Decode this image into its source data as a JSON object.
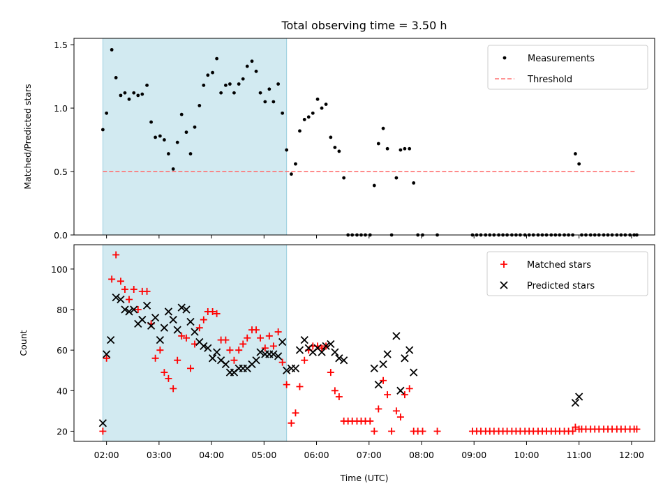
{
  "chart_data": [
    {
      "type": "scatter",
      "title": "Total observing time = 3.50 h",
      "xlabel": "",
      "ylabel": "Matched/Predicted stars",
      "ylim": [
        0,
        1.55
      ],
      "yticks": [
        0.0,
        0.5,
        1.0,
        1.5
      ],
      "ytick_labels": [
        "0.0",
        "0.5",
        "1.0",
        "1.5"
      ],
      "x_unit": "hours UTC",
      "xlim": [
        1.38,
        12.44
      ],
      "highlight_span": [
        1.93,
        5.43
      ],
      "highlight_color": "#add8e6",
      "legend_position": "upper right",
      "series": [
        {
          "name": "Measurements",
          "kind": "points",
          "color": "#000000",
          "x": [
            1.93,
            2.0,
            2.1,
            2.18,
            2.27,
            2.35,
            2.43,
            2.52,
            2.6,
            2.68,
            2.77,
            2.85,
            2.93,
            3.02,
            3.1,
            3.18,
            3.27,
            3.35,
            3.43,
            3.52,
            3.6,
            3.68,
            3.77,
            3.85,
            3.93,
            4.02,
            4.1,
            4.18,
            4.27,
            4.35,
            4.43,
            4.52,
            4.6,
            4.68,
            4.77,
            4.85,
            4.93,
            5.02,
            5.1,
            5.18,
            5.27,
            5.35,
            5.43,
            5.52,
            5.6,
            5.68,
            5.77,
            5.85,
            5.93,
            6.02,
            6.1,
            6.18,
            6.27,
            6.35,
            6.43,
            6.52,
            6.6,
            6.68,
            6.77,
            6.85,
            6.93,
            7.02,
            7.1,
            7.18,
            7.27,
            7.35,
            7.43,
            7.52,
            7.6,
            7.68,
            7.77,
            7.85,
            7.93,
            8.02,
            8.3,
            8.97,
            9.05,
            9.13,
            9.22,
            9.3,
            9.38,
            9.47,
            9.55,
            9.63,
            9.72,
            9.8,
            9.88,
            9.97,
            10.05,
            10.13,
            10.22,
            10.3,
            10.38,
            10.47,
            10.55,
            10.63,
            10.72,
            10.8,
            10.88,
            10.93,
            11.0,
            11.05,
            11.13,
            11.22,
            11.3,
            11.38,
            11.47,
            11.55,
            11.63,
            11.72,
            11.8,
            11.88,
            11.97,
            12.05,
            12.1
          ],
          "y": [
            0.83,
            0.96,
            1.46,
            1.24,
            1.1,
            1.12,
            1.07,
            1.12,
            1.1,
            1.11,
            1.18,
            0.89,
            0.77,
            0.78,
            0.75,
            0.64,
            0.52,
            0.73,
            0.95,
            0.81,
            0.64,
            0.85,
            1.02,
            1.18,
            1.26,
            1.28,
            1.39,
            1.12,
            1.18,
            1.19,
            1.12,
            1.19,
            1.23,
            1.33,
            1.37,
            1.29,
            1.12,
            1.05,
            1.15,
            1.05,
            1.19,
            0.96,
            0.67,
            0.48,
            0.56,
            0.82,
            0.91,
            0.93,
            0.96,
            1.07,
            1.0,
            1.03,
            0.77,
            0.69,
            0.66,
            0.45,
            0.0,
            0.0,
            0.0,
            0.0,
            0.0,
            0.0,
            0.39,
            0.72,
            0.84,
            0.68,
            0.0,
            0.45,
            0.67,
            0.68,
            0.68,
            0.41,
            0.0,
            0.0,
            0.0,
            0.0,
            0.0,
            0.0,
            0.0,
            0.0,
            0.0,
            0.0,
            0.0,
            0.0,
            0.0,
            0.0,
            0.0,
            0.0,
            0.0,
            0.0,
            0.0,
            0.0,
            0.0,
            0.0,
            0.0,
            0.0,
            0.0,
            0.0,
            0.0,
            0.64,
            0.56,
            0.0,
            0.0,
            0.0,
            0.0,
            0.0,
            0.0,
            0.0,
            0.0,
            0.0,
            0.0,
            0.0,
            0.0,
            0.0,
            0.0
          ]
        },
        {
          "name": "Threshold",
          "kind": "dashed-line",
          "color": "#ff7070",
          "x": [
            1.93,
            12.1
          ],
          "y": [
            0.5,
            0.5
          ]
        }
      ]
    },
    {
      "type": "scatter",
      "title": "",
      "xlabel": "Time (UTC)",
      "ylabel": "Count",
      "ylim": [
        15,
        112
      ],
      "yticks": [
        20,
        40,
        60,
        80,
        100
      ],
      "ytick_labels": [
        "20",
        "40",
        "60",
        "80",
        "100"
      ],
      "x_unit": "hours UTC",
      "xlim": [
        1.38,
        12.44
      ],
      "xticks": [
        2,
        3,
        4,
        5,
        6,
        7,
        8,
        9,
        10,
        11,
        12
      ],
      "xtick_labels": [
        "02:00",
        "03:00",
        "04:00",
        "05:00",
        "06:00",
        "07:00",
        "08:00",
        "09:00",
        "10:00",
        "11:00",
        "12:00"
      ],
      "highlight_span": [
        1.93,
        5.43
      ],
      "highlight_color": "#add8e6",
      "legend_position": "upper right",
      "series": [
        {
          "name": "Matched stars",
          "marker": "plus",
          "color": "#ff0000",
          "x": [
            1.93,
            2.0,
            2.1,
            2.18,
            2.27,
            2.35,
            2.43,
            2.52,
            2.6,
            2.68,
            2.77,
            2.85,
            2.93,
            3.02,
            3.1,
            3.18,
            3.27,
            3.35,
            3.43,
            3.52,
            3.6,
            3.68,
            3.77,
            3.85,
            3.93,
            4.02,
            4.1,
            4.18,
            4.27,
            4.35,
            4.43,
            4.52,
            4.6,
            4.68,
            4.77,
            4.85,
            4.93,
            5.02,
            5.1,
            5.18,
            5.27,
            5.35,
            5.43,
            5.52,
            5.6,
            5.68,
            5.77,
            5.85,
            5.93,
            6.02,
            6.1,
            6.18,
            6.27,
            6.35,
            6.43,
            6.52,
            6.6,
            6.68,
            6.77,
            6.85,
            6.93,
            7.02,
            7.1,
            7.18,
            7.27,
            7.35,
            7.43,
            7.52,
            7.6,
            7.68,
            7.77,
            7.85,
            7.93,
            8.02,
            8.3,
            8.97,
            9.05,
            9.13,
            9.22,
            9.3,
            9.38,
            9.47,
            9.55,
            9.63,
            9.72,
            9.8,
            9.88,
            9.97,
            10.05,
            10.13,
            10.22,
            10.3,
            10.38,
            10.47,
            10.55,
            10.63,
            10.72,
            10.8,
            10.88,
            10.93,
            11.0,
            11.05,
            11.13,
            11.22,
            11.3,
            11.38,
            11.47,
            11.55,
            11.63,
            11.72,
            11.8,
            11.88,
            11.97,
            12.05,
            12.1
          ],
          "y": [
            20,
            56,
            95,
            107,
            94,
            90,
            85,
            90,
            80,
            89,
            89,
            73,
            56,
            60,
            49,
            46,
            41,
            55,
            67,
            66,
            51,
            63,
            71,
            75,
            79,
            79,
            78,
            65,
            65,
            60,
            55,
            60,
            63,
            66,
            70,
            70,
            66,
            61,
            67,
            62,
            69,
            54,
            43,
            24,
            29,
            42,
            55,
            60,
            62,
            62,
            61,
            62,
            49,
            40,
            37,
            25,
            25,
            25,
            25,
            25,
            25,
            25,
            20,
            31,
            45,
            38,
            20,
            30,
            27,
            38,
            41,
            20,
            20,
            20,
            20,
            20,
            20,
            20,
            20,
            20,
            20,
            20,
            20,
            20,
            20,
            20,
            20,
            20,
            20,
            20,
            20,
            20,
            20,
            20,
            20,
            20,
            20,
            20,
            20,
            22,
            21,
            21,
            21,
            21,
            21,
            21,
            21,
            21,
            21,
            21,
            21,
            21,
            21,
            21,
            21
          ]
        },
        {
          "name": "Predicted stars",
          "marker": "x",
          "color": "#000000",
          "x": [
            1.93,
            2.0,
            2.08,
            2.18,
            2.27,
            2.35,
            2.43,
            2.52,
            2.6,
            2.68,
            2.77,
            2.85,
            2.93,
            3.02,
            3.1,
            3.18,
            3.27,
            3.35,
            3.43,
            3.52,
            3.6,
            3.68,
            3.77,
            3.85,
            3.93,
            4.02,
            4.1,
            4.18,
            4.27,
            4.35,
            4.43,
            4.52,
            4.6,
            4.68,
            4.77,
            4.85,
            4.93,
            5.02,
            5.1,
            5.18,
            5.27,
            5.35,
            5.43,
            5.52,
            5.6,
            5.68,
            5.77,
            5.85,
            5.93,
            6.02,
            6.1,
            6.18,
            6.27,
            6.35,
            6.43,
            6.52,
            7.1,
            7.18,
            7.27,
            7.35,
            7.52,
            7.6,
            7.68,
            7.77,
            7.85,
            10.93,
            11.0
          ],
          "y": [
            24,
            58,
            65,
            86,
            85,
            80,
            79,
            80,
            73,
            75,
            82,
            72,
            76,
            65,
            71,
            79,
            75,
            70,
            81,
            80,
            74,
            69,
            64,
            62,
            61,
            56,
            59,
            55,
            53,
            49,
            49,
            51,
            51,
            51,
            53,
            55,
            59,
            58,
            58,
            58,
            57,
            64,
            50,
            51,
            51,
            60,
            65,
            61,
            59,
            61,
            59,
            62,
            63,
            59,
            56,
            55,
            51,
            43,
            53,
            58,
            67,
            40,
            56,
            60,
            49,
            34,
            37
          ]
        }
      ]
    }
  ]
}
